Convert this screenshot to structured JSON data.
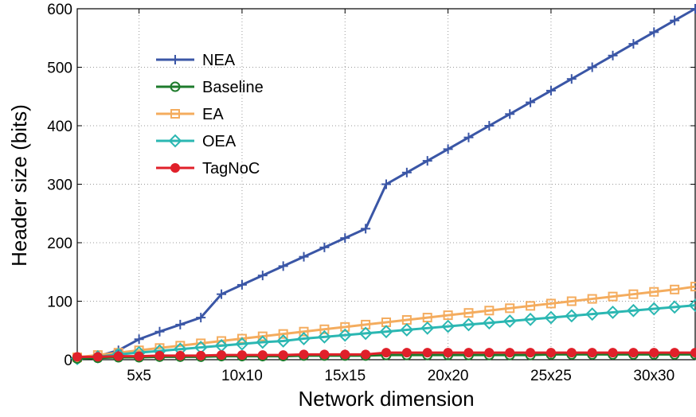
{
  "chart_data": {
    "type": "line",
    "title": "",
    "xlabel": "Network dimension",
    "ylabel": "Header size (bits)",
    "xlim": [
      2,
      32
    ],
    "ylim": [
      0,
      600
    ],
    "x_tick_values": [
      5,
      10,
      15,
      20,
      25,
      30
    ],
    "x_tick_labels": [
      "5x5",
      "10x10",
      "15x15",
      "20x20",
      "25x25",
      "30x30"
    ],
    "y_ticks": [
      0,
      100,
      200,
      300,
      400,
      500,
      600
    ],
    "y_tick_labels": [
      "0",
      "100",
      "200",
      "300",
      "400",
      "500",
      "600"
    ],
    "grid": true,
    "legend_position": "top-left",
    "x": [
      2,
      3,
      4,
      5,
      6,
      7,
      8,
      9,
      10,
      11,
      12,
      13,
      14,
      15,
      16,
      17,
      18,
      19,
      20,
      21,
      22,
      23,
      24,
      25,
      26,
      27,
      28,
      29,
      30,
      31,
      32
    ],
    "series": [
      {
        "name": "NEA",
        "color": "#3a56a6",
        "marker": "plus",
        "values": [
          2,
          6,
          16,
          35,
          48,
          60,
          72,
          112,
          128,
          144,
          160,
          176,
          192,
          208,
          224,
          300,
          320,
          340,
          360,
          380,
          400,
          420,
          440,
          460,
          480,
          500,
          520,
          540,
          560,
          580,
          600
        ]
      },
      {
        "name": "Baseline",
        "color": "#1e7b2c",
        "marker": "circle",
        "values": [
          2,
          3,
          4,
          4,
          5,
          5,
          5,
          6,
          6,
          6,
          6,
          7,
          7,
          7,
          7,
          8,
          8,
          8,
          8,
          8,
          8,
          8,
          8,
          9,
          9,
          9,
          9,
          9,
          9,
          9,
          9
        ]
      },
      {
        "name": "EA",
        "color": "#f4ac5e",
        "marker": "square",
        "values": [
          4,
          8,
          12,
          16,
          20,
          24,
          28,
          32,
          36,
          40,
          44,
          48,
          52,
          56,
          60,
          64,
          68,
          72,
          76,
          80,
          84,
          88,
          92,
          96,
          100,
          104,
          108,
          112,
          116,
          120,
          125
        ]
      },
      {
        "name": "OEA",
        "color": "#2bb7b2",
        "marker": "diamond",
        "values": [
          2,
          5,
          9,
          12,
          15,
          18,
          21,
          24,
          27,
          30,
          32,
          36,
          39,
          42,
          45,
          48,
          51,
          54,
          57,
          60,
          63,
          66,
          69,
          72,
          75,
          78,
          81,
          84,
          87,
          90,
          93
        ]
      },
      {
        "name": "TagNoC",
        "color": "#e0202a",
        "marker": "filled-circle",
        "values": [
          5,
          5,
          6,
          6,
          7,
          7,
          7,
          8,
          8,
          8,
          8,
          9,
          9,
          9,
          9,
          12,
          12,
          12,
          12,
          12,
          12,
          12,
          12,
          12,
          12,
          12,
          12,
          12,
          12,
          12,
          12
        ]
      }
    ]
  }
}
